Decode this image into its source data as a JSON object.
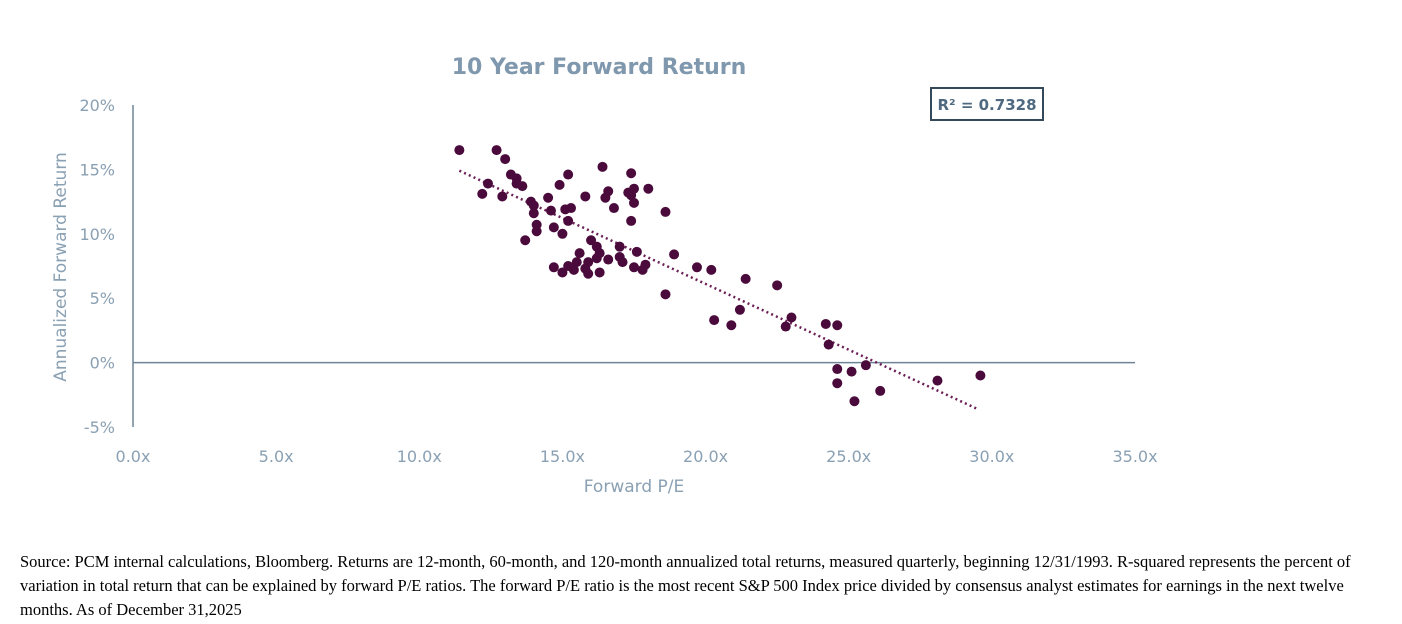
{
  "colors": {
    "point": "#4a0b3c",
    "axis": "#6f8597",
    "text": "#8aa0b3",
    "title": "#7f98ad",
    "trend": "#6b1f55"
  },
  "chart_data": {
    "type": "scatter",
    "title": "10 Year Forward Return",
    "xlabel": "Forward P/E",
    "ylabel": "Annualized  Forward Return",
    "xlim": [
      0,
      35
    ],
    "ylim": [
      -5,
      20
    ],
    "x_ticks": [
      0,
      5,
      10,
      15,
      20,
      25,
      30,
      35
    ],
    "x_tick_labels": [
      "0.0x",
      "5.0x",
      "10.0x",
      "15.0x",
      "20.0x",
      "25.0x",
      "30.0x",
      "35.0x"
    ],
    "y_ticks": [
      20,
      15,
      10,
      5,
      0,
      -5
    ],
    "y_tick_labels": [
      "20%",
      "15%",
      "10%",
      "5%",
      "0%",
      "-5%"
    ],
    "annotation": "R² = 0.7328",
    "trendline": {
      "x": [
        11.4,
        29.5
      ],
      "y": [
        14.9,
        -3.6
      ],
      "style": "dotted"
    },
    "points": [
      [
        11.4,
        16.5
      ],
      [
        12.7,
        16.5
      ],
      [
        13.0,
        15.8
      ],
      [
        12.2,
        13.1
      ],
      [
        12.4,
        13.9
      ],
      [
        12.9,
        12.9
      ],
      [
        13.2,
        14.6
      ],
      [
        13.4,
        14.3
      ],
      [
        13.4,
        13.9
      ],
      [
        13.6,
        13.7
      ],
      [
        13.9,
        12.5
      ],
      [
        14.0,
        12.2
      ],
      [
        14.0,
        11.6
      ],
      [
        14.1,
        10.7
      ],
      [
        14.1,
        10.2
      ],
      [
        13.7,
        9.5
      ],
      [
        14.5,
        12.8
      ],
      [
        14.6,
        11.8
      ],
      [
        14.7,
        10.5
      ],
      [
        14.9,
        13.8
      ],
      [
        15.2,
        14.6
      ],
      [
        15.1,
        11.9
      ],
      [
        15.3,
        12.0
      ],
      [
        15.2,
        11.0
      ],
      [
        15.0,
        10.0
      ],
      [
        14.7,
        7.4
      ],
      [
        15.0,
        7.0
      ],
      [
        15.2,
        7.5
      ],
      [
        15.4,
        7.2
      ],
      [
        15.6,
        8.5
      ],
      [
        15.5,
        7.8
      ],
      [
        15.9,
        7.8
      ],
      [
        15.8,
        7.3
      ],
      [
        15.9,
        6.9
      ],
      [
        15.8,
        12.9
      ],
      [
        16.0,
        9.5
      ],
      [
        16.2,
        9.0
      ],
      [
        16.3,
        8.5
      ],
      [
        16.2,
        8.1
      ],
      [
        16.3,
        7.0
      ],
      [
        16.6,
        8.0
      ],
      [
        16.4,
        15.2
      ],
      [
        16.5,
        12.8
      ],
      [
        16.6,
        13.3
      ],
      [
        16.8,
        12.0
      ],
      [
        17.0,
        9.0
      ],
      [
        17.0,
        8.2
      ],
      [
        17.1,
        7.8
      ],
      [
        17.4,
        14.7
      ],
      [
        17.3,
        13.2
      ],
      [
        17.5,
        13.5
      ],
      [
        17.4,
        13.0
      ],
      [
        17.5,
        12.4
      ],
      [
        17.4,
        11.0
      ],
      [
        17.6,
        8.6
      ],
      [
        17.5,
        7.4
      ],
      [
        17.8,
        7.2
      ],
      [
        17.9,
        7.6
      ],
      [
        18.0,
        13.5
      ],
      [
        18.6,
        11.7
      ],
      [
        18.9,
        8.4
      ],
      [
        18.6,
        5.3
      ],
      [
        19.7,
        7.4
      ],
      [
        20.2,
        7.2
      ],
      [
        20.3,
        3.3
      ],
      [
        20.9,
        2.9
      ],
      [
        21.2,
        4.1
      ],
      [
        21.4,
        6.5
      ],
      [
        22.5,
        6.0
      ],
      [
        22.8,
        2.8
      ],
      [
        23.0,
        3.5
      ],
      [
        24.2,
        3.0
      ],
      [
        24.3,
        1.4
      ],
      [
        24.6,
        2.9
      ],
      [
        24.6,
        -0.5
      ],
      [
        24.6,
        -1.6
      ],
      [
        25.1,
        -0.7
      ],
      [
        25.2,
        -3.0
      ],
      [
        25.6,
        -0.2
      ],
      [
        26.1,
        -2.2
      ],
      [
        28.1,
        -1.4
      ],
      [
        29.6,
        -1.0
      ]
    ]
  },
  "footnote": "Source: PCM internal calculations, Bloomberg. Returns are 12-month, 60-month, and 120-month annualized total returns, measured quarterly, beginning 12/31/1993. R-squared represents the percent of variation in total return that can be explained by forward P/E ratios. The forward P/E ratio is the most recent S&P 500 Index price divided by consensus analyst estimates for earnings in the next twelve months. As of December 31,2025"
}
